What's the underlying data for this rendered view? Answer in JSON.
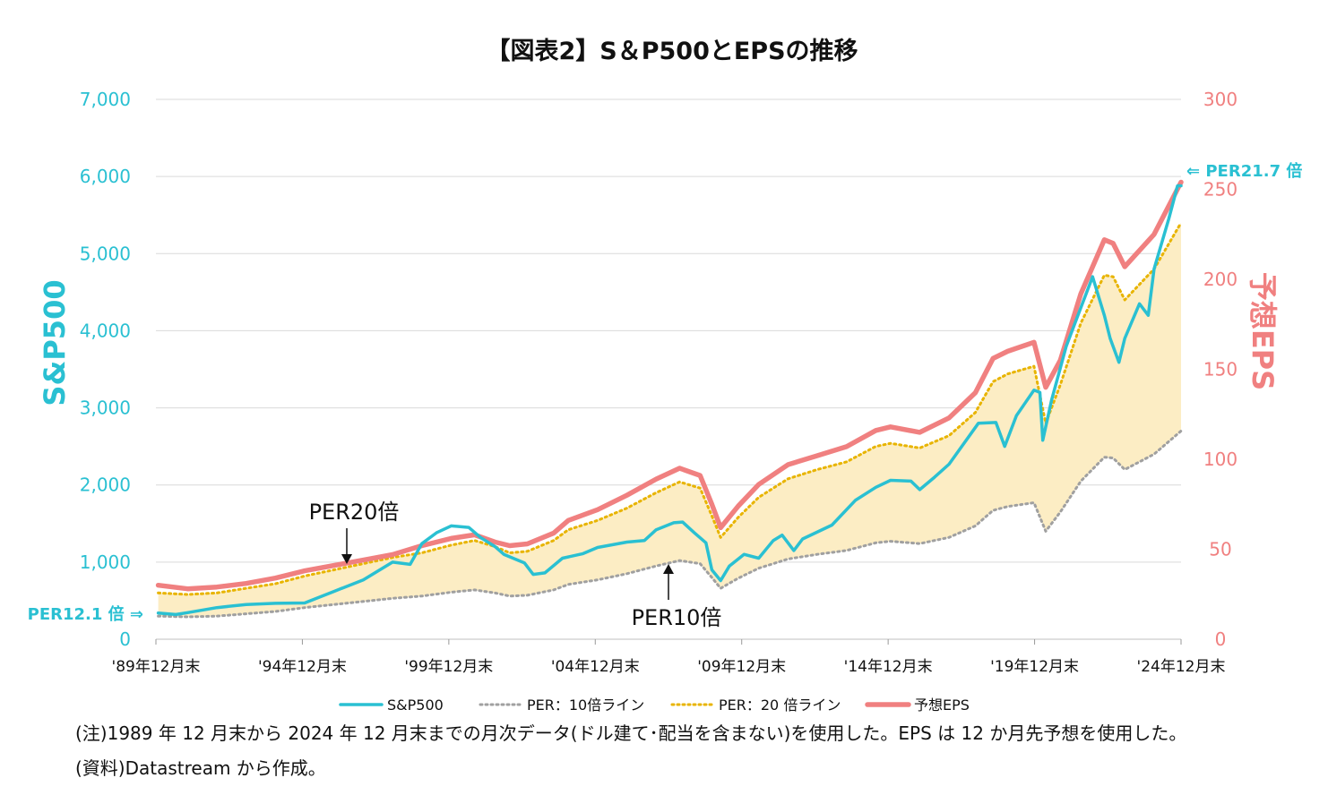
{
  "colors": {
    "sp500": "#2ac0d2",
    "eps": "#f08080",
    "per10": "#a0a0a0",
    "per20": "#e8b400",
    "fill": "#fcedc4",
    "grid": "#d9d9d9",
    "axis_left": "#2ac0d2",
    "axis_right": "#f08080"
  },
  "chart_data": {
    "type": "line",
    "title": "【図表2】S＆P500とEPSの推移",
    "ylabel_left": "S&P500",
    "ylabel_right": "予想EPS",
    "ylim_left": [
      0,
      7000
    ],
    "ylim_right": [
      0,
      300
    ],
    "yticks_left": [
      "0",
      "1,000",
      "2,000",
      "3,000",
      "4,000",
      "5,000",
      "6,000",
      "7,000"
    ],
    "yticks_right": [
      "0",
      "50",
      "100",
      "150",
      "200",
      "250",
      "300"
    ],
    "xlim": [
      1989.92,
      2024.92
    ],
    "xticks": [
      {
        "x": 1989.92,
        "label": "'89年12月末"
      },
      {
        "x": 1994.92,
        "label": "'94年12月末"
      },
      {
        "x": 1999.92,
        "label": "'99年12月末"
      },
      {
        "x": 2004.92,
        "label": "'04年12月末"
      },
      {
        "x": 2009.92,
        "label": "'09年12月末"
      },
      {
        "x": 2014.92,
        "label": "'14年12月末"
      },
      {
        "x": 2019.92,
        "label": "'19年12月末"
      },
      {
        "x": 2024.92,
        "label": "'24年12月末"
      }
    ],
    "legend_placement": "bottom",
    "grid": true,
    "series": [
      {
        "name": "S&P500",
        "axis": "left",
        "points": [
          [
            1990.0,
            340
          ],
          [
            1990.6,
            320
          ],
          [
            1991.0,
            345
          ],
          [
            1992.0,
            410
          ],
          [
            1993.0,
            450
          ],
          [
            1994.0,
            465
          ],
          [
            1995.0,
            470
          ],
          [
            1996.0,
            620
          ],
          [
            1997.0,
            770
          ],
          [
            1998.0,
            1000
          ],
          [
            1998.6,
            970
          ],
          [
            1999.0,
            1240
          ],
          [
            1999.5,
            1380
          ],
          [
            2000.0,
            1470
          ],
          [
            2000.6,
            1450
          ],
          [
            2001.0,
            1320
          ],
          [
            2001.5,
            1200
          ],
          [
            2001.8,
            1100
          ],
          [
            2002.5,
            990
          ],
          [
            2002.8,
            840
          ],
          [
            2003.2,
            860
          ],
          [
            2003.8,
            1050
          ],
          [
            2004.5,
            1110
          ],
          [
            2005.0,
            1190
          ],
          [
            2006.0,
            1260
          ],
          [
            2006.6,
            1280
          ],
          [
            2007.0,
            1420
          ],
          [
            2007.6,
            1510
          ],
          [
            2007.9,
            1520
          ],
          [
            2008.3,
            1380
          ],
          [
            2008.7,
            1250
          ],
          [
            2008.9,
            900
          ],
          [
            2009.2,
            760
          ],
          [
            2009.5,
            950
          ],
          [
            2010.0,
            1100
          ],
          [
            2010.5,
            1050
          ],
          [
            2011.0,
            1280
          ],
          [
            2011.3,
            1350
          ],
          [
            2011.7,
            1150
          ],
          [
            2012.0,
            1300
          ],
          [
            2013.0,
            1480
          ],
          [
            2013.8,
            1800
          ],
          [
            2014.5,
            1970
          ],
          [
            2015.0,
            2060
          ],
          [
            2015.7,
            2050
          ],
          [
            2016.0,
            1940
          ],
          [
            2016.5,
            2100
          ],
          [
            2017.0,
            2270
          ],
          [
            2018.0,
            2800
          ],
          [
            2018.6,
            2810
          ],
          [
            2018.9,
            2500
          ],
          [
            2019.3,
            2900
          ],
          [
            2019.9,
            3230
          ],
          [
            2020.1,
            3200
          ],
          [
            2020.2,
            2580
          ],
          [
            2020.5,
            3100
          ],
          [
            2021.0,
            3800
          ],
          [
            2021.5,
            4300
          ],
          [
            2021.9,
            4700
          ],
          [
            2022.3,
            4200
          ],
          [
            2022.5,
            3900
          ],
          [
            2022.8,
            3590
          ],
          [
            2023.0,
            3900
          ],
          [
            2023.5,
            4350
          ],
          [
            2023.8,
            4200
          ],
          [
            2024.0,
            4800
          ],
          [
            2024.5,
            5450
          ],
          [
            2024.8,
            5880
          ],
          [
            2024.92,
            5880
          ]
        ]
      },
      {
        "name": "PER：10倍ライン",
        "axis": "left",
        "points": [
          [
            1990.0,
            300
          ],
          [
            1991.0,
            290
          ],
          [
            1992.0,
            300
          ],
          [
            1993.0,
            330
          ],
          [
            1994.0,
            360
          ],
          [
            1995.0,
            410
          ],
          [
            1996.0,
            450
          ],
          [
            1997.0,
            490
          ],
          [
            1998.0,
            530
          ],
          [
            1999.0,
            560
          ],
          [
            2000.0,
            610
          ],
          [
            2000.8,
            640
          ],
          [
            2001.5,
            600
          ],
          [
            2002.0,
            560
          ],
          [
            2002.6,
            570
          ],
          [
            2003.5,
            640
          ],
          [
            2004.0,
            710
          ],
          [
            2005.0,
            770
          ],
          [
            2006.0,
            850
          ],
          [
            2007.0,
            950
          ],
          [
            2007.8,
            1020
          ],
          [
            2008.5,
            980
          ],
          [
            2008.9,
            800
          ],
          [
            2009.2,
            660
          ],
          [
            2009.8,
            790
          ],
          [
            2010.5,
            920
          ],
          [
            2011.5,
            1040
          ],
          [
            2012.5,
            1100
          ],
          [
            2013.5,
            1150
          ],
          [
            2014.5,
            1250
          ],
          [
            2015.0,
            1270
          ],
          [
            2016.0,
            1240
          ],
          [
            2017.0,
            1320
          ],
          [
            2017.9,
            1470
          ],
          [
            2018.5,
            1670
          ],
          [
            2019.0,
            1720
          ],
          [
            2019.9,
            1770
          ],
          [
            2020.3,
            1400
          ],
          [
            2020.8,
            1650
          ],
          [
            2021.5,
            2050
          ],
          [
            2022.3,
            2360
          ],
          [
            2022.6,
            2350
          ],
          [
            2023.0,
            2200
          ],
          [
            2024.0,
            2400
          ],
          [
            2024.92,
            2700
          ]
        ]
      },
      {
        "name": "PER：20 倍ライン",
        "axis": "left",
        "points": [
          [
            1990.0,
            600
          ],
          [
            1991.0,
            580
          ],
          [
            1992.0,
            600
          ],
          [
            1993.0,
            660
          ],
          [
            1994.0,
            720
          ],
          [
            1995.0,
            820
          ],
          [
            1996.0,
            900
          ],
          [
            1997.0,
            980
          ],
          [
            1998.0,
            1060
          ],
          [
            1999.0,
            1120
          ],
          [
            2000.0,
            1220
          ],
          [
            2000.8,
            1280
          ],
          [
            2001.5,
            1200
          ],
          [
            2002.0,
            1120
          ],
          [
            2002.6,
            1140
          ],
          [
            2003.5,
            1280
          ],
          [
            2004.0,
            1420
          ],
          [
            2005.0,
            1540
          ],
          [
            2006.0,
            1700
          ],
          [
            2007.0,
            1900
          ],
          [
            2007.8,
            2040
          ],
          [
            2008.5,
            1960
          ],
          [
            2008.9,
            1600
          ],
          [
            2009.2,
            1320
          ],
          [
            2009.8,
            1580
          ],
          [
            2010.5,
            1840
          ],
          [
            2011.5,
            2080
          ],
          [
            2012.5,
            2200
          ],
          [
            2013.5,
            2300
          ],
          [
            2014.5,
            2500
          ],
          [
            2015.0,
            2540
          ],
          [
            2016.0,
            2480
          ],
          [
            2017.0,
            2640
          ],
          [
            2017.9,
            2940
          ],
          [
            2018.5,
            3340
          ],
          [
            2019.0,
            3440
          ],
          [
            2019.9,
            3540
          ],
          [
            2020.3,
            2800
          ],
          [
            2020.8,
            3300
          ],
          [
            2021.5,
            4100
          ],
          [
            2022.3,
            4720
          ],
          [
            2022.6,
            4700
          ],
          [
            2023.0,
            4400
          ],
          [
            2024.0,
            4800
          ],
          [
            2024.92,
            5400
          ]
        ]
      },
      {
        "name": "予想EPS",
        "axis": "right",
        "points": [
          [
            1990.0,
            30
          ],
          [
            1991.0,
            28
          ],
          [
            1992.0,
            29
          ],
          [
            1993.0,
            31
          ],
          [
            1994.0,
            34
          ],
          [
            1995.0,
            38
          ],
          [
            1996.0,
            41
          ],
          [
            1997.0,
            44
          ],
          [
            1998.0,
            47
          ],
          [
            1999.0,
            52
          ],
          [
            2000.0,
            56
          ],
          [
            2000.8,
            58
          ],
          [
            2001.5,
            54
          ],
          [
            2002.0,
            52
          ],
          [
            2002.6,
            53
          ],
          [
            2003.5,
            59
          ],
          [
            2004.0,
            66
          ],
          [
            2005.0,
            72
          ],
          [
            2006.0,
            80
          ],
          [
            2007.0,
            89
          ],
          [
            2007.8,
            95
          ],
          [
            2008.5,
            91
          ],
          [
            2008.9,
            75
          ],
          [
            2009.2,
            62
          ],
          [
            2009.8,
            74
          ],
          [
            2010.5,
            86
          ],
          [
            2011.5,
            97
          ],
          [
            2012.5,
            102
          ],
          [
            2013.5,
            107
          ],
          [
            2014.5,
            116
          ],
          [
            2015.0,
            118
          ],
          [
            2016.0,
            115
          ],
          [
            2017.0,
            123
          ],
          [
            2017.9,
            137
          ],
          [
            2018.5,
            156
          ],
          [
            2019.0,
            160
          ],
          [
            2019.9,
            165
          ],
          [
            2020.3,
            140
          ],
          [
            2020.8,
            155
          ],
          [
            2021.5,
            192
          ],
          [
            2022.3,
            222
          ],
          [
            2022.6,
            220
          ],
          [
            2023.0,
            207
          ],
          [
            2024.0,
            225
          ],
          [
            2024.92,
            254
          ]
        ]
      }
    ],
    "annotations": [
      {
        "id": "per12",
        "text": "PER12.1 倍 ⇒"
      },
      {
        "id": "per217",
        "text": "⇐ PER21.7 倍"
      },
      {
        "id": "per20",
        "text": "PER20倍"
      },
      {
        "id": "per10",
        "text": "PER10倍"
      }
    ]
  },
  "notes": {
    "line1": "(注)1989 年 12 月末から 2024 年 12 月末までの月次データ(ドル建て･配当を含まない)を使用した。EPS は 12 か月先予想を使用した。",
    "line2": "(資料)Datastream から作成。"
  }
}
